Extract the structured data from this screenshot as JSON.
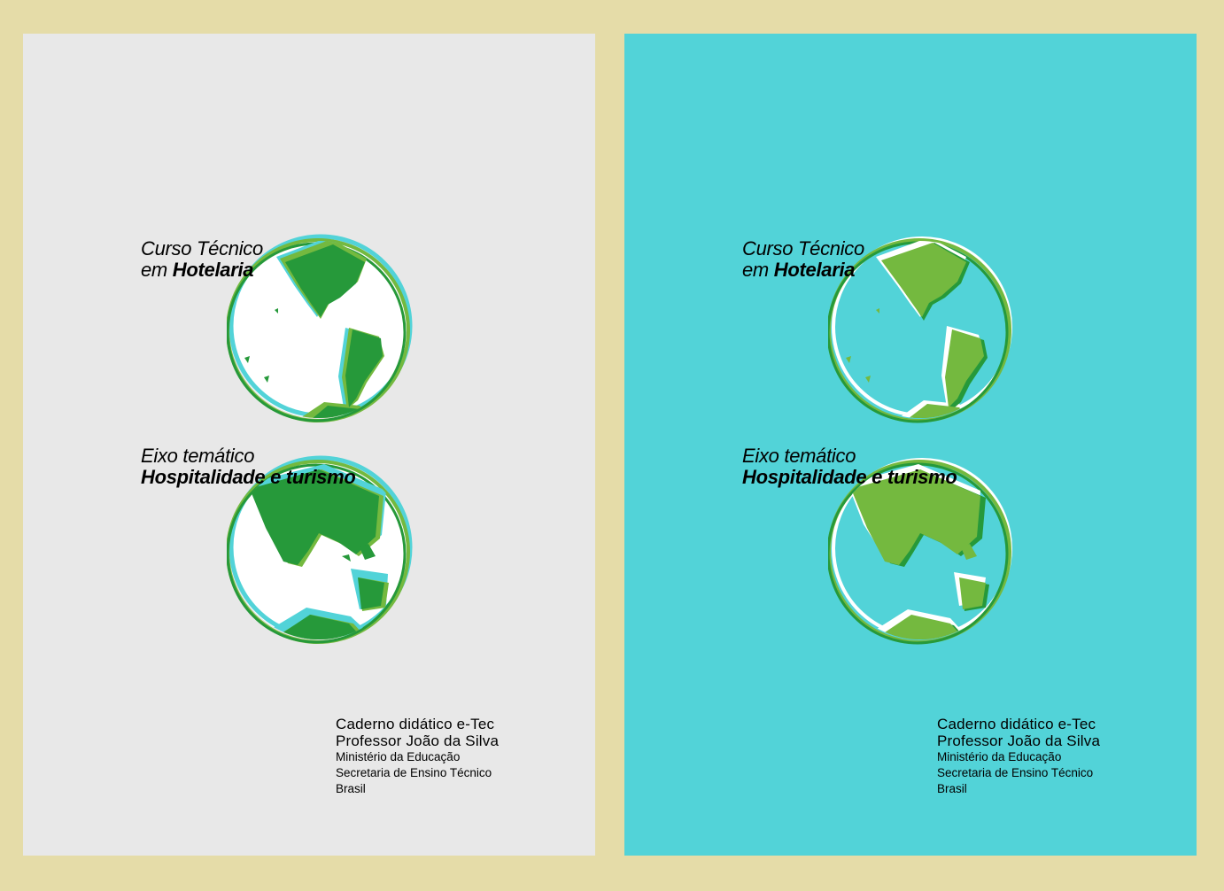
{
  "colors": {
    "background": "#e5dca8",
    "left_cover": "#e8e8e8",
    "right_cover": "#52d3d8",
    "land_dark": "#26993a",
    "land_light": "#74b93f",
    "accent_cyan": "#52d3d8"
  },
  "covers": [
    {
      "course_line1": "Curso Técnico",
      "course_line2_prefix": "em ",
      "course_line2_bold": "Hotelaria",
      "axis_line1": "Eixo temático",
      "axis_line2": "Hospitalidade e turismo",
      "booklet": "Caderno didático e-Tec",
      "author": "Professor João da Silva",
      "ministry": "Ministério da Educação",
      "secretariat": "Secretaria de Ensino Técnico",
      "country": "Brasil",
      "globe_top_icon": "americas-globe-icon",
      "globe_bottom_icon": "eastern-hemisphere-globe-icon"
    },
    {
      "course_line1": "Curso Técnico",
      "course_line2_prefix": "em ",
      "course_line2_bold": "Hotelaria",
      "axis_line1": "Eixo temático",
      "axis_line2": "Hospitalidade e turismo",
      "booklet": "Caderno didático e-Tec",
      "author": "Professor João da Silva",
      "ministry": "Ministério da Educação",
      "secretariat": "Secretaria de Ensino Técnico",
      "country": "Brasil",
      "globe_top_icon": "americas-globe-icon",
      "globe_bottom_icon": "eastern-hemisphere-globe-icon"
    }
  ]
}
